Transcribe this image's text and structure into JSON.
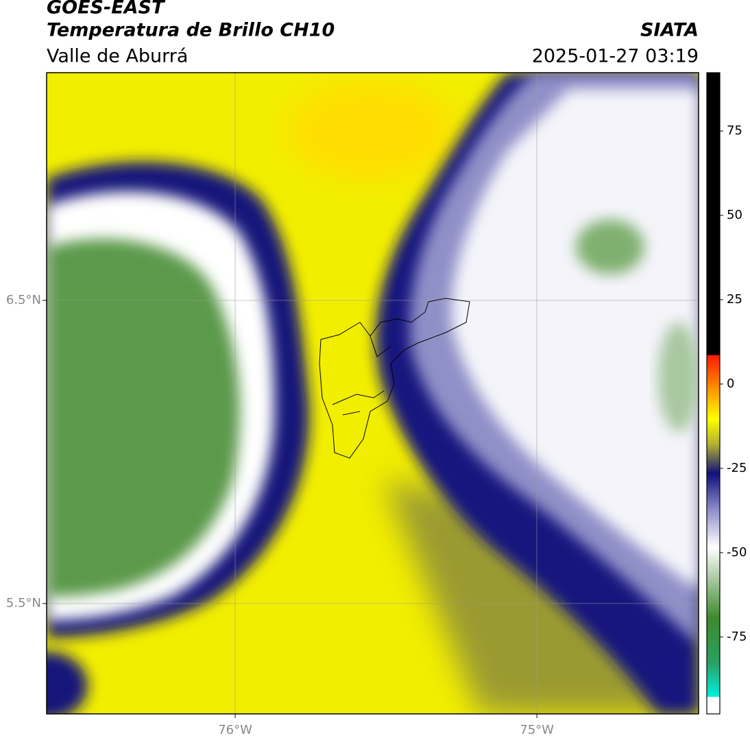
{
  "header": {
    "title": "GOES-EAST",
    "subtitle": "Temperatura de Brillo CH10",
    "region": "Valle de Aburrá",
    "source": "SIATA",
    "datetime": "2025-01-27 03:19"
  },
  "map": {
    "latlim": [
      5.136,
      7.251
    ],
    "lonlim": [
      -76.625,
      -74.464
    ],
    "lat_ticks": [
      {
        "value": 6.5,
        "label": "6.5°N"
      },
      {
        "value": 5.5,
        "label": "5.5°N"
      }
    ],
    "lon_ticks": [
      {
        "value": -76,
        "label": "76°W"
      },
      {
        "value": -75,
        "label": "75°W"
      }
    ]
  },
  "colorbar": {
    "lim": [
      -97.8,
      92.3
    ],
    "ticks": [
      75,
      50,
      25,
      0,
      -25,
      -50,
      -75
    ]
  }
}
